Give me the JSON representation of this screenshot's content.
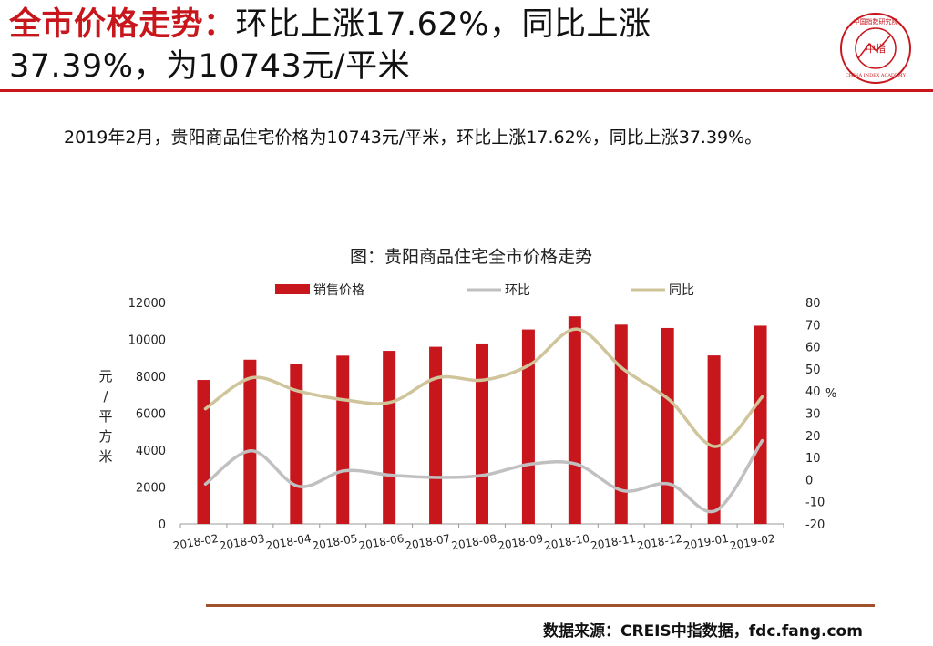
{
  "header": {
    "title_highlight": "全市价格走势：",
    "title_line1_rest": "环比上涨17.62%，同比上涨",
    "title_line2": "37.39%，为10743元/平米",
    "logo": {
      "icon": "china-index-academy-seal",
      "center_text": "中指",
      "ring_text": "中国指数研究院",
      "en_text": "CHINA INDEX ACADEMY",
      "color": "#c8161d"
    }
  },
  "summary": "2019年2月，贵阳商品住宅价格为10743元/平米，环比上涨17.62%，同比上涨37.39%。",
  "chart_data": {
    "type": "bar",
    "title": "图：贵阳商品住宅全市价格走势",
    "categories": [
      "2018-02",
      "2018-03",
      "2018-04",
      "2018-05",
      "2018-06",
      "2018-07",
      "2018-08",
      "2018-09",
      "2018-10",
      "2018-11",
      "2018-12",
      "2019-01",
      "2019-02"
    ],
    "series": [
      {
        "name": "销售价格",
        "type": "bar",
        "axis": "left",
        "color": "#c8161d",
        "values": [
          7800,
          8900,
          8650,
          9120,
          9380,
          9600,
          9780,
          10540,
          11250,
          10800,
          10620,
          9130,
          10743
        ]
      },
      {
        "name": "环比",
        "type": "line",
        "axis": "right",
        "color": "#c0c0c0",
        "values": [
          -2,
          13,
          -3,
          4,
          2,
          1,
          2,
          7,
          7,
          -5,
          -2,
          -14,
          17.62
        ]
      },
      {
        "name": "同比",
        "type": "line",
        "axis": "right",
        "color": "#cfc49a",
        "values": [
          32,
          46,
          40,
          36,
          35,
          46,
          45,
          52,
          68,
          50,
          36,
          15,
          37.39
        ]
      }
    ],
    "ylabel_left": "元/平方米",
    "ylabel_right": "%",
    "ylim_left": [
      0,
      12000
    ],
    "ylim_right": [
      -20,
      80
    ],
    "yticks_left": [
      "0",
      "2000",
      "4000",
      "6000",
      "8000",
      "10000",
      "12000"
    ],
    "yticks_right": [
      "-20",
      "-10",
      "0",
      "10",
      "20",
      "30",
      "40",
      "50",
      "60",
      "70",
      "80"
    ],
    "legend_position": "top",
    "grid": false
  },
  "footer": {
    "source": "数据来源：CREIS中指数据，fdc.fang.com"
  }
}
